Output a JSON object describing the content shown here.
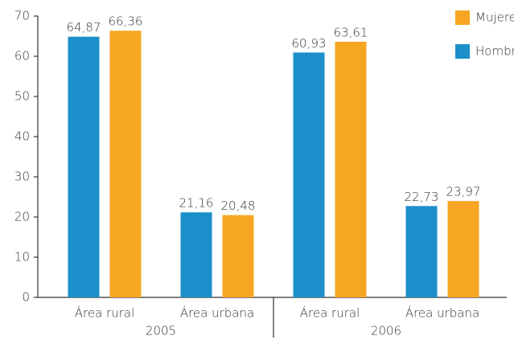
{
  "chart_data": {
    "type": "bar",
    "categories": [
      "Área rural",
      "Área urbana",
      "Área rural",
      "Área urbana"
    ],
    "groups": [
      "2005",
      "2006"
    ],
    "series": [
      {
        "name": "Hombres",
        "color": "#1b8fca",
        "values": [
          64.87,
          21.16,
          60.93,
          22.73
        ],
        "value_labels": [
          "64,87",
          "21,16",
          "60,93",
          "22,73"
        ]
      },
      {
        "name": "Mujeres",
        "color": "#f6a623",
        "values": [
          66.36,
          20.48,
          63.61,
          23.97
        ],
        "value_labels": [
          "66,36",
          "20,48",
          "63,61",
          "23,97"
        ]
      }
    ],
    "ylim": [
      0,
      70
    ],
    "yticks": [
      0,
      10,
      20,
      30,
      40,
      50,
      60,
      70
    ],
    "grid": false,
    "legend": "top-right"
  }
}
